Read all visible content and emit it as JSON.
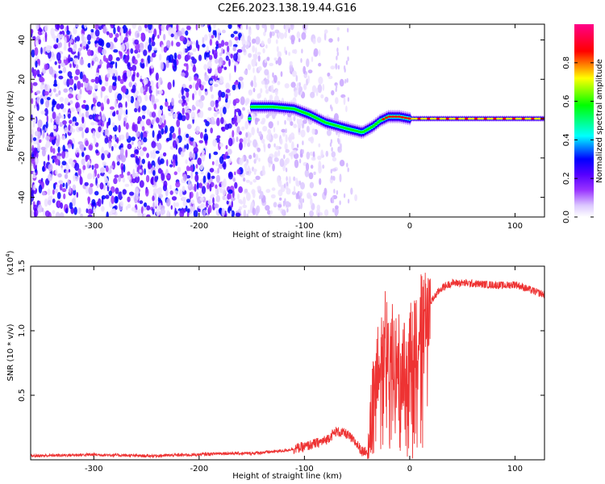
{
  "title": "C2E6.2023.138.19.44.G16",
  "chart_data": [
    {
      "type": "heatmap",
      "xlabel": "Height of straight line (km)",
      "ylabel": "Frequency (Hz)",
      "xlim": [
        -360,
        128
      ],
      "ylim": [
        -50,
        48
      ],
      "x_ticks": [
        -300,
        -200,
        -100,
        0,
        100
      ],
      "y_ticks": [
        -40,
        -20,
        0,
        20,
        40
      ],
      "colorbar": {
        "label": "Normalized spectral amplitude",
        "range": [
          0,
          1
        ],
        "ticks": [
          "0.0",
          "0.2",
          "0.4",
          "0.6",
          "0.8"
        ],
        "colors": [
          "#ffffff",
          "#dcc8ff",
          "#9933ff",
          "#5500ff",
          "#0000ff",
          "#00ffff",
          "#00ff00",
          "#ffff00",
          "#ff0000",
          "#ff00aa"
        ]
      },
      "ridge": {
        "x": [
          -150,
          -130,
          -110,
          -95,
          -80,
          -60,
          -45,
          -35,
          -28,
          -20,
          -10,
          0,
          10,
          30,
          60,
          90,
          128
        ],
        "frequency": [
          6,
          6,
          5,
          2,
          -2,
          -5,
          -7,
          -4,
          -1,
          1,
          1,
          0,
          0,
          0,
          0,
          0,
          0
        ]
      }
    },
    {
      "type": "line",
      "xlabel": "Height of straight line (km)",
      "ylabel": "SNR (10 * v/v)",
      "multiplier": "(x10",
      "exponent": "4",
      "xlim": [
        -360,
        128
      ],
      "ylim": [
        0,
        1.5
      ],
      "x_ticks": [
        -300,
        -200,
        -100,
        0,
        100
      ],
      "y_ticks": [
        "0.5",
        "1.0",
        "1.5"
      ],
      "color": "#ee3333",
      "series": [
        {
          "x": [
            -360,
            -300,
            -250,
            -200,
            -180,
            -150,
            -120,
            -100,
            -80,
            -70,
            -60,
            -50,
            -45,
            -40,
            -35,
            -30,
            -25,
            -22,
            -20,
            -15,
            -10,
            -5,
            0,
            5,
            10,
            15,
            20,
            25,
            30,
            40,
            50,
            70,
            90,
            100,
            110,
            120,
            128
          ],
          "values": [
            0.03,
            0.04,
            0.03,
            0.04,
            0.05,
            0.05,
            0.07,
            0.1,
            0.15,
            0.22,
            0.2,
            0.12,
            0.06,
            0.08,
            0.4,
            0.85,
            0.95,
            1.0,
            0.95,
            0.85,
            0.8,
            0.72,
            0.9,
            1.0,
            1.1,
            1.18,
            1.22,
            1.28,
            1.33,
            1.37,
            1.37,
            1.36,
            1.35,
            1.36,
            1.33,
            1.3,
            1.28
          ]
        }
      ]
    }
  ]
}
